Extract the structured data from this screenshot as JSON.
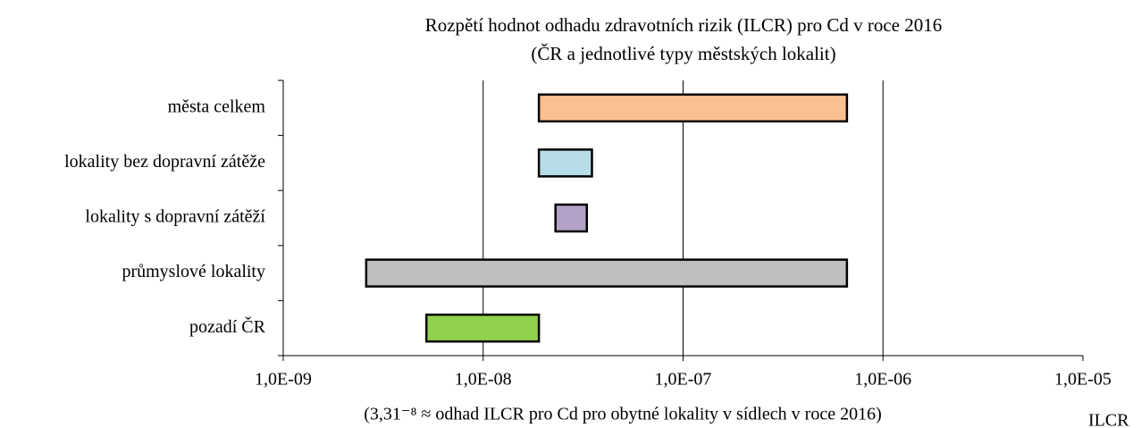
{
  "chart_data": {
    "type": "floating-bar",
    "title": "Rozpětí hodnot odhadu zdravotních rizik (ILCR) pro Cd v roce 2016",
    "subtitle": "(ČR a jednotlivé typy městských lokalit)",
    "x_label": "(3,31⁻⁸ ≈ odhad ILCR pro Cd pro obytné lokality v sídlech v roce 2016)",
    "x_unit": "ILCR",
    "categories": [
      "města celkem",
      "lokality bez dopravní zátěže",
      "lokality s dopravní zátěží",
      "průmyslové lokality",
      "pozadí ČR"
    ],
    "values": [
      [
        1.9e-08,
        6.6e-07
      ],
      [
        1.9e-08,
        3.5e-08
      ],
      [
        2.3e-08,
        3.3e-08
      ],
      [
        2.6e-09,
        6.6e-07
      ],
      [
        5.2e-09,
        1.9e-08
      ]
    ],
    "colors": [
      "#fac090",
      "#b7dee8",
      "#b3a2c7",
      "#bfbfbf",
      "#92d050"
    ],
    "xscale": "log",
    "xlim": [
      1e-09,
      1e-05
    ],
    "xticks": [
      {
        "value": 1e-09,
        "label": "1,0E-09"
      },
      {
        "value": 1e-08,
        "label": "1,0E-08"
      },
      {
        "value": 1e-07,
        "label": "1,0E-07"
      },
      {
        "value": 1e-06,
        "label": "1,0E-06"
      },
      {
        "value": 1e-05,
        "label": "1,0E-05"
      }
    ],
    "grid": true
  }
}
